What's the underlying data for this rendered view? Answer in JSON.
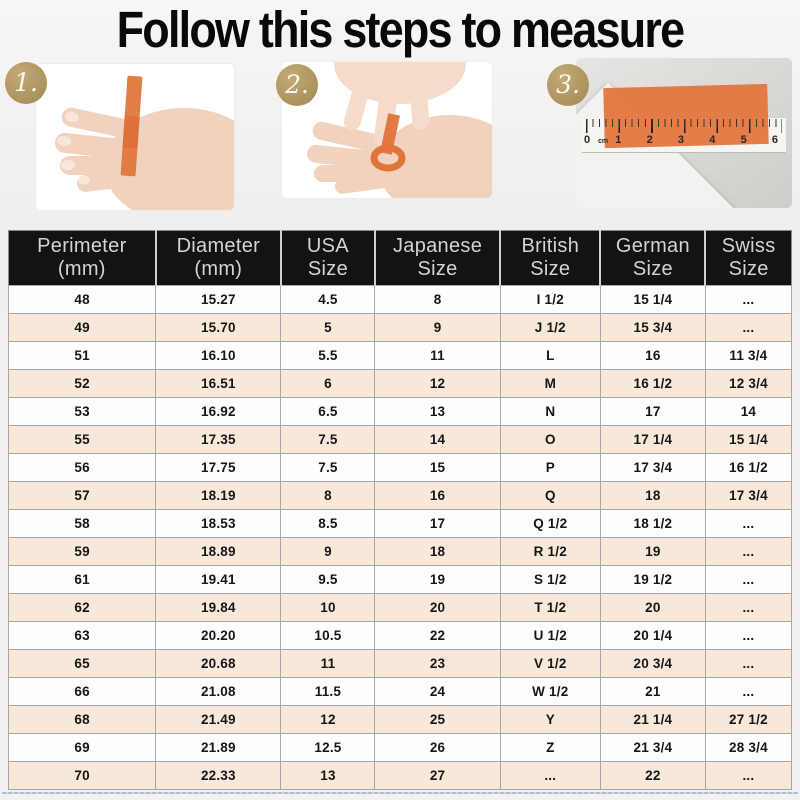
{
  "title": "Follow this steps to measure",
  "steps": [
    {
      "number": "1."
    },
    {
      "number": "2."
    },
    {
      "number": "3.",
      "ruler_unit": "cm",
      "ruler_numbers": [
        "0",
        "1",
        "2",
        "3",
        "4",
        "5",
        "6"
      ]
    }
  ],
  "table": {
    "headers": [
      {
        "top": "Perimeter",
        "bottom": "(mm)"
      },
      {
        "top": "Diameter",
        "bottom": "(mm)"
      },
      {
        "top": "USA",
        "bottom": "Size"
      },
      {
        "top": "Japanese",
        "bottom": "Size"
      },
      {
        "top": "British",
        "bottom": "Size"
      },
      {
        "top": "German",
        "bottom": "Size"
      },
      {
        "top": "Swiss",
        "bottom": "Size"
      }
    ],
    "rows": [
      [
        "48",
        "15.27",
        "4.5",
        "8",
        "I 1/2",
        "15 1/4",
        "..."
      ],
      [
        "49",
        "15.70",
        "5",
        "9",
        "J 1/2",
        "15 3/4",
        "..."
      ],
      [
        "51",
        "16.10",
        "5.5",
        "11",
        "L",
        "16",
        "11 3/4"
      ],
      [
        "52",
        "16.51",
        "6",
        "12",
        "M",
        "16 1/2",
        "12 3/4"
      ],
      [
        "53",
        "16.92",
        "6.5",
        "13",
        "N",
        "17",
        "14"
      ],
      [
        "55",
        "17.35",
        "7.5",
        "14",
        "O",
        "17 1/4",
        "15 1/4"
      ],
      [
        "56",
        "17.75",
        "7.5",
        "15",
        "P",
        "17 3/4",
        "16 1/2"
      ],
      [
        "57",
        "18.19",
        "8",
        "16",
        "Q",
        "18",
        "17 3/4"
      ],
      [
        "58",
        "18.53",
        "8.5",
        "17",
        "Q 1/2",
        "18 1/2",
        "..."
      ],
      [
        "59",
        "18.89",
        "9",
        "18",
        "R 1/2",
        "19",
        "..."
      ],
      [
        "61",
        "19.41",
        "9.5",
        "19",
        "S 1/2",
        "19 1/2",
        "..."
      ],
      [
        "62",
        "19.84",
        "10",
        "20",
        "T 1/2",
        "20",
        "..."
      ],
      [
        "63",
        "20.20",
        "10.5",
        "22",
        "U 1/2",
        "20 1/4",
        "..."
      ],
      [
        "65",
        "20.68",
        "11",
        "23",
        "V 1/2",
        "20 3/4",
        "..."
      ],
      [
        "66",
        "21.08",
        "11.5",
        "24",
        "W 1/2",
        "21",
        "..."
      ],
      [
        "68",
        "21.49",
        "12",
        "25",
        "Y",
        "21 1/4",
        "27 1/2"
      ],
      [
        "69",
        "21.89",
        "12.5",
        "26",
        "Z",
        "21 3/4",
        "28 3/4"
      ],
      [
        "70",
        "22.33",
        "13",
        "27",
        "...",
        "22",
        "..."
      ]
    ]
  },
  "colors": {
    "header_bg": "#131313",
    "header_text": "#d4d4d4",
    "row_alt": "#f8e8d9",
    "badge_gold": "#b59a63",
    "ribbon_orange": "#e2733a"
  }
}
